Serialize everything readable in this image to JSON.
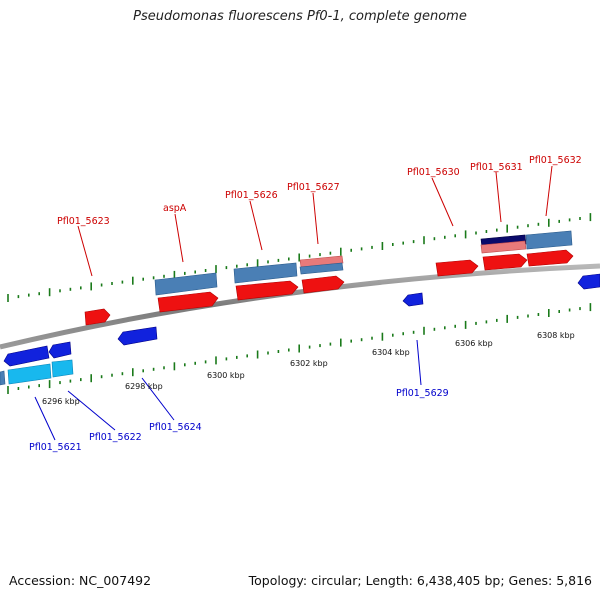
{
  "title": "Pseudomonas fluorescens Pf0-1, complete genome",
  "accession_label": "Accession: NC_007492",
  "summary_label": "Topology: circular; Length: 6,438,405 bp; Genes: 5,816",
  "axis_labels": [
    "6296 kbp",
    "6298 kbp",
    "6300 kbp",
    "6302 kbp",
    "6304 kbp",
    "6306 kbp",
    "6308 kbp"
  ],
  "genes_forward": [
    "Pfl01_5623",
    "aspA",
    "Pfl01_5626",
    "Pfl01_5627",
    "Pfl01_5630",
    "Pfl01_5631",
    "Pfl01_5632"
  ],
  "genes_reverse": [
    "Pfl01_5621",
    "Pfl01_5622",
    "Pfl01_5624",
    "Pfl01_5629"
  ],
  "colors": {
    "forward_label": "#cc0000",
    "reverse_label": "#0000cc",
    "forward_gene": "#ee1111",
    "reverse_gene": "#1122dd",
    "feature_steelblue": "#4a7fb5",
    "feature_cyan": "#18b8ee",
    "feature_navy": "#0a0a6a",
    "feature_salmon": "#e87a7a",
    "tick": "#1a7a1a",
    "backbone": "#888888"
  }
}
